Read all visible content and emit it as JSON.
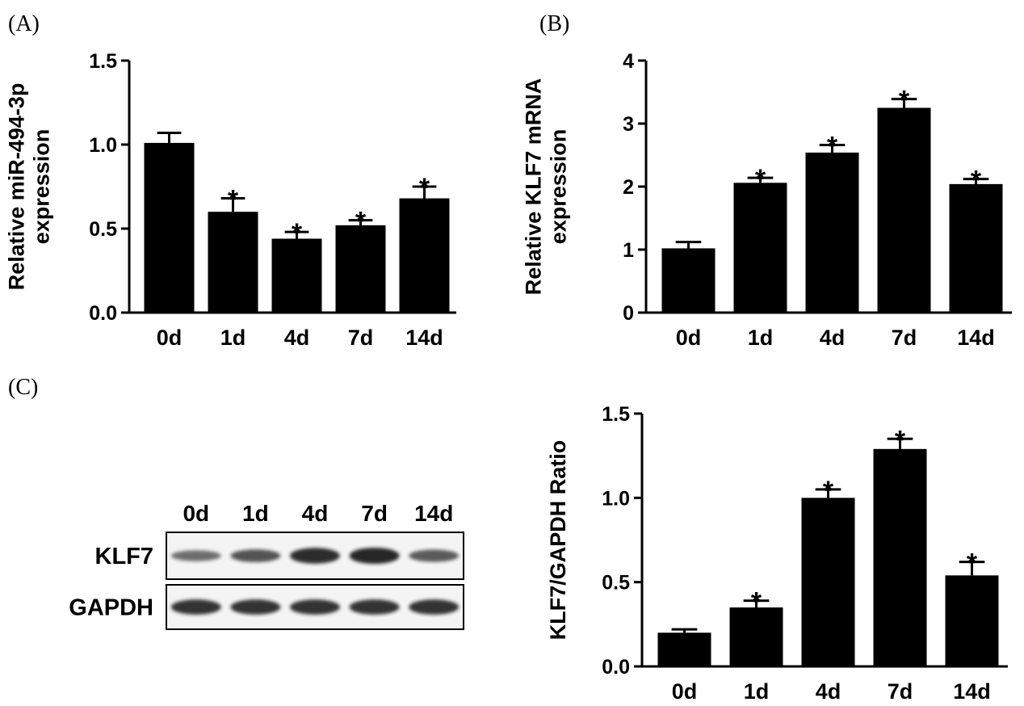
{
  "panel_labels": {
    "A": "(A)",
    "B": "(B)",
    "C": "(C)"
  },
  "colors": {
    "bar": "#000000",
    "axis": "#000000",
    "blot_bg": "#f4f4f4",
    "band": "#1a1a1a"
  },
  "chart_data": [
    {
      "id": "A",
      "type": "bar",
      "title": "",
      "ylabel_lines": [
        "Relative miR-494-3p",
        "expression"
      ],
      "xlabel": "",
      "categories": [
        "0d",
        "1d",
        "4d",
        "7d",
        "14d"
      ],
      "values": [
        1.01,
        0.6,
        0.44,
        0.52,
        0.68
      ],
      "errors": [
        0.06,
        0.08,
        0.04,
        0.03,
        0.07
      ],
      "significance": [
        "",
        "*",
        "*",
        "*",
        "*"
      ],
      "ylim": [
        0,
        1.5
      ],
      "yticks": [
        "0.0",
        "0.5",
        "1.0",
        "1.5"
      ],
      "ytick_values": [
        0,
        0.5,
        1.0,
        1.5
      ]
    },
    {
      "id": "B",
      "type": "bar",
      "title": "",
      "ylabel_lines": [
        "Relative KLF7 mRNA",
        "expression"
      ],
      "xlabel": "",
      "categories": [
        "0d",
        "1d",
        "4d",
        "7d",
        "14d"
      ],
      "values": [
        1.02,
        2.06,
        2.54,
        3.25,
        2.04
      ],
      "errors": [
        0.1,
        0.08,
        0.12,
        0.14,
        0.08
      ],
      "significance": [
        "",
        "*",
        "*",
        "*",
        "*"
      ],
      "ylim": [
        0,
        4
      ],
      "yticks": [
        "0",
        "1",
        "2",
        "3",
        "4"
      ],
      "ytick_values": [
        0,
        1,
        2,
        3,
        4
      ]
    },
    {
      "id": "C",
      "type": "bar",
      "title": "",
      "ylabel_lines": [
        "KLF7/GAPDH Ratio"
      ],
      "xlabel": "",
      "categories": [
        "0d",
        "1d",
        "4d",
        "7d",
        "14d"
      ],
      "values": [
        0.2,
        0.35,
        1.0,
        1.29,
        0.54
      ],
      "errors": [
        0.02,
        0.04,
        0.05,
        0.06,
        0.08
      ],
      "significance": [
        "",
        "*",
        "*",
        "*",
        "*"
      ],
      "ylim": [
        0,
        1.5
      ],
      "yticks": [
        "0.0",
        "0.5",
        "1.0",
        "1.5"
      ],
      "ytick_values": [
        0,
        0.5,
        1.0,
        1.5
      ]
    }
  ],
  "western_blot": {
    "lanes": [
      "0d",
      "1d",
      "4d",
      "7d",
      "14d"
    ],
    "rows": [
      {
        "label": "KLF7",
        "intensities": [
          0.45,
          0.65,
          0.95,
          1.0,
          0.6
        ]
      },
      {
        "label": "GAPDH",
        "intensities": [
          0.9,
          0.9,
          0.9,
          0.9,
          0.9
        ]
      }
    ]
  }
}
